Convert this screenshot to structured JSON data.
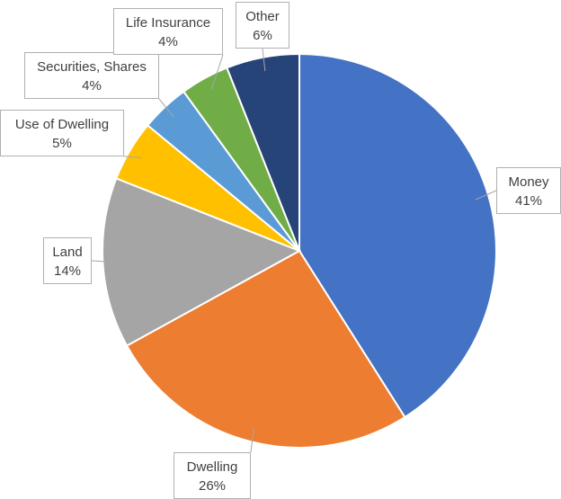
{
  "chart_data": {
    "type": "pie",
    "title": "",
    "start_angle_deg": 0,
    "direction": "clockwise",
    "slices": [
      {
        "name": "Money",
        "value": 41,
        "label": "41%",
        "color": "#4472C4"
      },
      {
        "name": "Dwelling",
        "value": 26,
        "label": "26%",
        "color": "#ED7D31"
      },
      {
        "name": "Land",
        "value": 14,
        "label": "14%",
        "color": "#A5A5A5"
      },
      {
        "name": "Use of Dwelling",
        "value": 5,
        "label": "5%",
        "color": "#FFC000"
      },
      {
        "name": "Securities, Shares",
        "value": 4,
        "label": "4%",
        "color": "#5B9BD5"
      },
      {
        "name": "Life Insurance",
        "value": 4,
        "label": "4%",
        "color": "#70AD47"
      },
      {
        "name": "Other",
        "value": 6,
        "label": "6%",
        "color": "#264478"
      }
    ],
    "legend": "none",
    "data_labels": "callouts"
  }
}
